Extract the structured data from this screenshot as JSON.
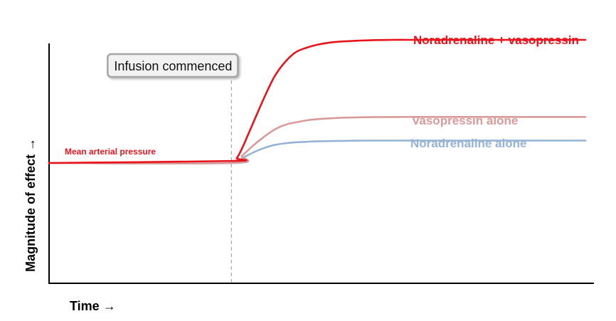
{
  "chart_data": {
    "type": "line",
    "title": "",
    "xlabel": "Time →",
    "ylabel": "Magnitude of effect →",
    "xlim": [
      0,
      100
    ],
    "ylim": [
      0,
      100
    ],
    "grid": false,
    "axis_ticks": false,
    "event_marker": {
      "x": 34,
      "label": "Infusion commenced"
    },
    "annotation": {
      "text": "Mean arterial pressure",
      "color": "#e8141c"
    },
    "series": [
      {
        "name": "Noradrenaline + vasopressin",
        "color": "#e8141c",
        "x": [
          0,
          34,
          35,
          36,
          37,
          38,
          40,
          42,
          44,
          46,
          48,
          50,
          52,
          55,
          58,
          61,
          64,
          67,
          70,
          75,
          80,
          86,
          90,
          100
        ],
        "y": [
          50,
          50.8,
          52,
          56,
          61,
          66,
          76,
          85,
          91,
          95,
          96.8,
          98,
          98.8,
          99.4,
          99.7,
          99.9,
          100,
          100,
          100,
          100,
          100,
          100,
          100,
          100
        ],
        "label_at": "end"
      },
      {
        "name": "Vasopressin alone",
        "color": "#d99a9a",
        "x": [
          0,
          34,
          36,
          38,
          40,
          42,
          44,
          46,
          48,
          50,
          55,
          60,
          66,
          70,
          80,
          90,
          100
        ],
        "y": [
          50,
          50,
          53,
          57,
          60.5,
          63.5,
          65.5,
          66.5,
          67.3,
          67.8,
          68.4,
          68.6,
          68.7,
          68.7,
          68.7,
          68.7,
          68.7
        ],
        "label_at": "end"
      },
      {
        "name": "Noradrenaline alone",
        "color": "#95b3d7",
        "x": [
          0,
          34,
          36,
          38,
          40,
          42,
          44,
          46,
          48,
          50,
          55,
          60,
          66,
          70,
          80,
          90,
          100
        ],
        "y": [
          50,
          50,
          52,
          54.2,
          56,
          57.3,
          58,
          58.4,
          58.6,
          58.8,
          59,
          59.1,
          59.1,
          59.1,
          59.1,
          59.1,
          59.1
        ],
        "label_at": "end"
      }
    ]
  }
}
